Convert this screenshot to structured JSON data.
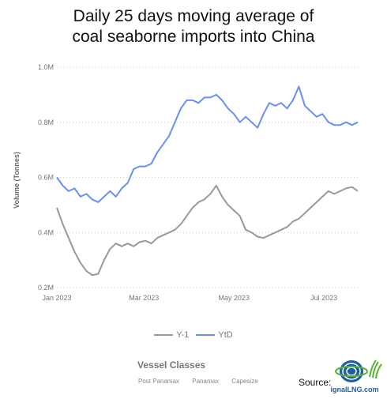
{
  "title_lines": [
    "Daily 25 days moving average of",
    "coal seaborne imports into China"
  ],
  "chart_data": {
    "type": "line",
    "title": "Daily 25 days moving average of coal seaborne imports into China",
    "ylabel": "Volume (Tonnes)",
    "xlabel": "",
    "ylim": [
      0.2,
      1.0
    ],
    "ytick_values": [
      0.2,
      0.4,
      0.6,
      0.8,
      1.0
    ],
    "ytick_labels": [
      "0.2M",
      "0.4M",
      "0.6M",
      "0.8M",
      "1.0M"
    ],
    "xlim": [
      "2023-01-01",
      "2023-07-25"
    ],
    "xticks": [
      {
        "date": "2023-01-01",
        "label": "Jan 2023"
      },
      {
        "date": "2023-03-01",
        "label": "Mar 2023"
      },
      {
        "date": "2023-05-01",
        "label": "May 2023"
      },
      {
        "date": "2023-07-01",
        "label": "Jul 2023"
      }
    ],
    "grid": "horizontal-dotted",
    "legend_position": "bottom-center",
    "series": [
      {
        "name": "Y-1",
        "color": "#999999",
        "points": [
          [
            "2023-01-01",
            0.49
          ],
          [
            "2023-01-05",
            0.43
          ],
          [
            "2023-01-09",
            0.38
          ],
          [
            "2023-01-13",
            0.33
          ],
          [
            "2023-01-17",
            0.29
          ],
          [
            "2023-01-21",
            0.26
          ],
          [
            "2023-01-25",
            0.245
          ],
          [
            "2023-01-29",
            0.25
          ],
          [
            "2023-02-02",
            0.3
          ],
          [
            "2023-02-06",
            0.34
          ],
          [
            "2023-02-10",
            0.36
          ],
          [
            "2023-02-14",
            0.35
          ],
          [
            "2023-02-18",
            0.36
          ],
          [
            "2023-02-22",
            0.35
          ],
          [
            "2023-02-26",
            0.365
          ],
          [
            "2023-03-02",
            0.37
          ],
          [
            "2023-03-06",
            0.36
          ],
          [
            "2023-03-10",
            0.38
          ],
          [
            "2023-03-14",
            0.39
          ],
          [
            "2023-03-18",
            0.4
          ],
          [
            "2023-03-22",
            0.41
          ],
          [
            "2023-03-26",
            0.43
          ],
          [
            "2023-03-30",
            0.46
          ],
          [
            "2023-04-03",
            0.49
          ],
          [
            "2023-04-07",
            0.51
          ],
          [
            "2023-04-11",
            0.52
          ],
          [
            "2023-04-15",
            0.54
          ],
          [
            "2023-04-19",
            0.57
          ],
          [
            "2023-04-23",
            0.53
          ],
          [
            "2023-04-27",
            0.5
          ],
          [
            "2023-05-01",
            0.48
          ],
          [
            "2023-05-05",
            0.46
          ],
          [
            "2023-05-09",
            0.41
          ],
          [
            "2023-05-13",
            0.4
          ],
          [
            "2023-05-17",
            0.385
          ],
          [
            "2023-05-21",
            0.38
          ],
          [
            "2023-05-25",
            0.39
          ],
          [
            "2023-05-29",
            0.4
          ],
          [
            "2023-06-02",
            0.41
          ],
          [
            "2023-06-06",
            0.42
          ],
          [
            "2023-06-10",
            0.44
          ],
          [
            "2023-06-14",
            0.45
          ],
          [
            "2023-06-18",
            0.47
          ],
          [
            "2023-06-22",
            0.49
          ],
          [
            "2023-06-26",
            0.51
          ],
          [
            "2023-06-30",
            0.53
          ],
          [
            "2023-07-04",
            0.55
          ],
          [
            "2023-07-08",
            0.54
          ],
          [
            "2023-07-12",
            0.55
          ],
          [
            "2023-07-16",
            0.56
          ],
          [
            "2023-07-20",
            0.565
          ],
          [
            "2023-07-24",
            0.55
          ]
        ]
      },
      {
        "name": "YtD",
        "color": "#6b8ef2",
        "points": [
          [
            "2023-01-01",
            0.6
          ],
          [
            "2023-01-05",
            0.57
          ],
          [
            "2023-01-09",
            0.55
          ],
          [
            "2023-01-13",
            0.56
          ],
          [
            "2023-01-17",
            0.53
          ],
          [
            "2023-01-21",
            0.54
          ],
          [
            "2023-01-25",
            0.52
          ],
          [
            "2023-01-29",
            0.51
          ],
          [
            "2023-02-02",
            0.53
          ],
          [
            "2023-02-06",
            0.55
          ],
          [
            "2023-02-10",
            0.53
          ],
          [
            "2023-02-14",
            0.56
          ],
          [
            "2023-02-18",
            0.58
          ],
          [
            "2023-02-22",
            0.63
          ],
          [
            "2023-02-26",
            0.64
          ],
          [
            "2023-03-02",
            0.64
          ],
          [
            "2023-03-06",
            0.65
          ],
          [
            "2023-03-10",
            0.69
          ],
          [
            "2023-03-14",
            0.72
          ],
          [
            "2023-03-18",
            0.75
          ],
          [
            "2023-03-22",
            0.8
          ],
          [
            "2023-03-26",
            0.85
          ],
          [
            "2023-03-30",
            0.88
          ],
          [
            "2023-04-03",
            0.88
          ],
          [
            "2023-04-07",
            0.87
          ],
          [
            "2023-04-11",
            0.89
          ],
          [
            "2023-04-15",
            0.89
          ],
          [
            "2023-04-19",
            0.9
          ],
          [
            "2023-04-23",
            0.88
          ],
          [
            "2023-04-27",
            0.85
          ],
          [
            "2023-05-01",
            0.83
          ],
          [
            "2023-05-05",
            0.8
          ],
          [
            "2023-05-09",
            0.82
          ],
          [
            "2023-05-13",
            0.8
          ],
          [
            "2023-05-17",
            0.78
          ],
          [
            "2023-05-21",
            0.83
          ],
          [
            "2023-05-25",
            0.87
          ],
          [
            "2023-05-29",
            0.86
          ],
          [
            "2023-06-02",
            0.87
          ],
          [
            "2023-06-06",
            0.85
          ],
          [
            "2023-06-10",
            0.88
          ],
          [
            "2023-06-14",
            0.93
          ],
          [
            "2023-06-18",
            0.86
          ],
          [
            "2023-06-22",
            0.84
          ],
          [
            "2023-06-26",
            0.82
          ],
          [
            "2023-06-30",
            0.83
          ],
          [
            "2023-07-04",
            0.8
          ],
          [
            "2023-07-08",
            0.79
          ],
          [
            "2023-07-12",
            0.79
          ],
          [
            "2023-07-16",
            0.8
          ],
          [
            "2023-07-20",
            0.79
          ],
          [
            "2023-07-24",
            0.8
          ]
        ]
      }
    ]
  },
  "legend": {
    "items": [
      {
        "label": "Y-1",
        "color": "#999999"
      },
      {
        "label": "YtD",
        "color": "#6b8ef2"
      }
    ]
  },
  "vessel_classes": {
    "title": "Vessel Classes",
    "options": [
      "Post Panamax",
      "Panamax",
      "Capesize"
    ]
  },
  "source": {
    "label": "Source:",
    "logo_text": "SignalLNG.com"
  }
}
